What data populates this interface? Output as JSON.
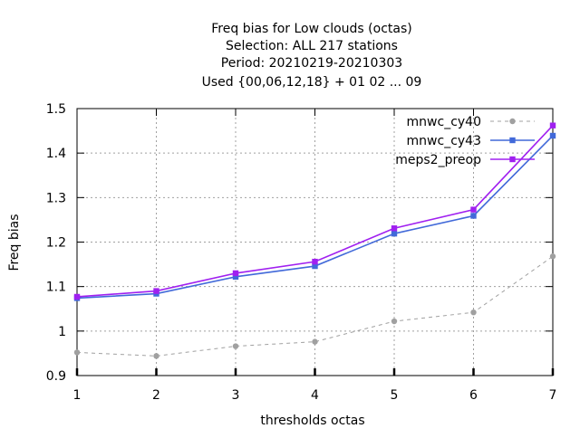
{
  "chart_data": {
    "type": "line",
    "title_lines": [
      "Freq bias  for Low clouds (octas)",
      "Selection: ALL    217 stations",
      "Period: 20210219-20210303",
      "Used {00,06,12,18} + 01 02 ... 09"
    ],
    "xlabel": "thresholds octas",
    "ylabel": "Freq bias",
    "x": [
      1,
      2,
      3,
      4,
      5,
      6,
      7
    ],
    "xlim": [
      1,
      7
    ],
    "ylim": [
      0.9,
      1.5
    ],
    "xticks": [
      "1",
      "2",
      "3",
      "4",
      "5",
      "6",
      "7"
    ],
    "yticks": [
      "0.9",
      "1",
      "1.1",
      "1.2",
      "1.3",
      "1.4",
      "1.5"
    ],
    "grid": true,
    "legend_position": "top-right",
    "series": [
      {
        "name": "mnwc_cy40",
        "color": "#a0a0a0",
        "dashed": true,
        "marker": "circle",
        "values": [
          0.952,
          0.944,
          0.966,
          0.976,
          1.022,
          1.042,
          1.168
        ]
      },
      {
        "name": "mnwc_cy43",
        "color": "#4169d9",
        "dashed": false,
        "marker": "square",
        "values": [
          1.074,
          1.084,
          1.122,
          1.146,
          1.219,
          1.259,
          1.439
        ]
      },
      {
        "name": "meps2_preop",
        "color": "#a020f0",
        "dashed": false,
        "marker": "square",
        "values": [
          1.077,
          1.09,
          1.13,
          1.156,
          1.231,
          1.273,
          1.462
        ]
      }
    ]
  }
}
